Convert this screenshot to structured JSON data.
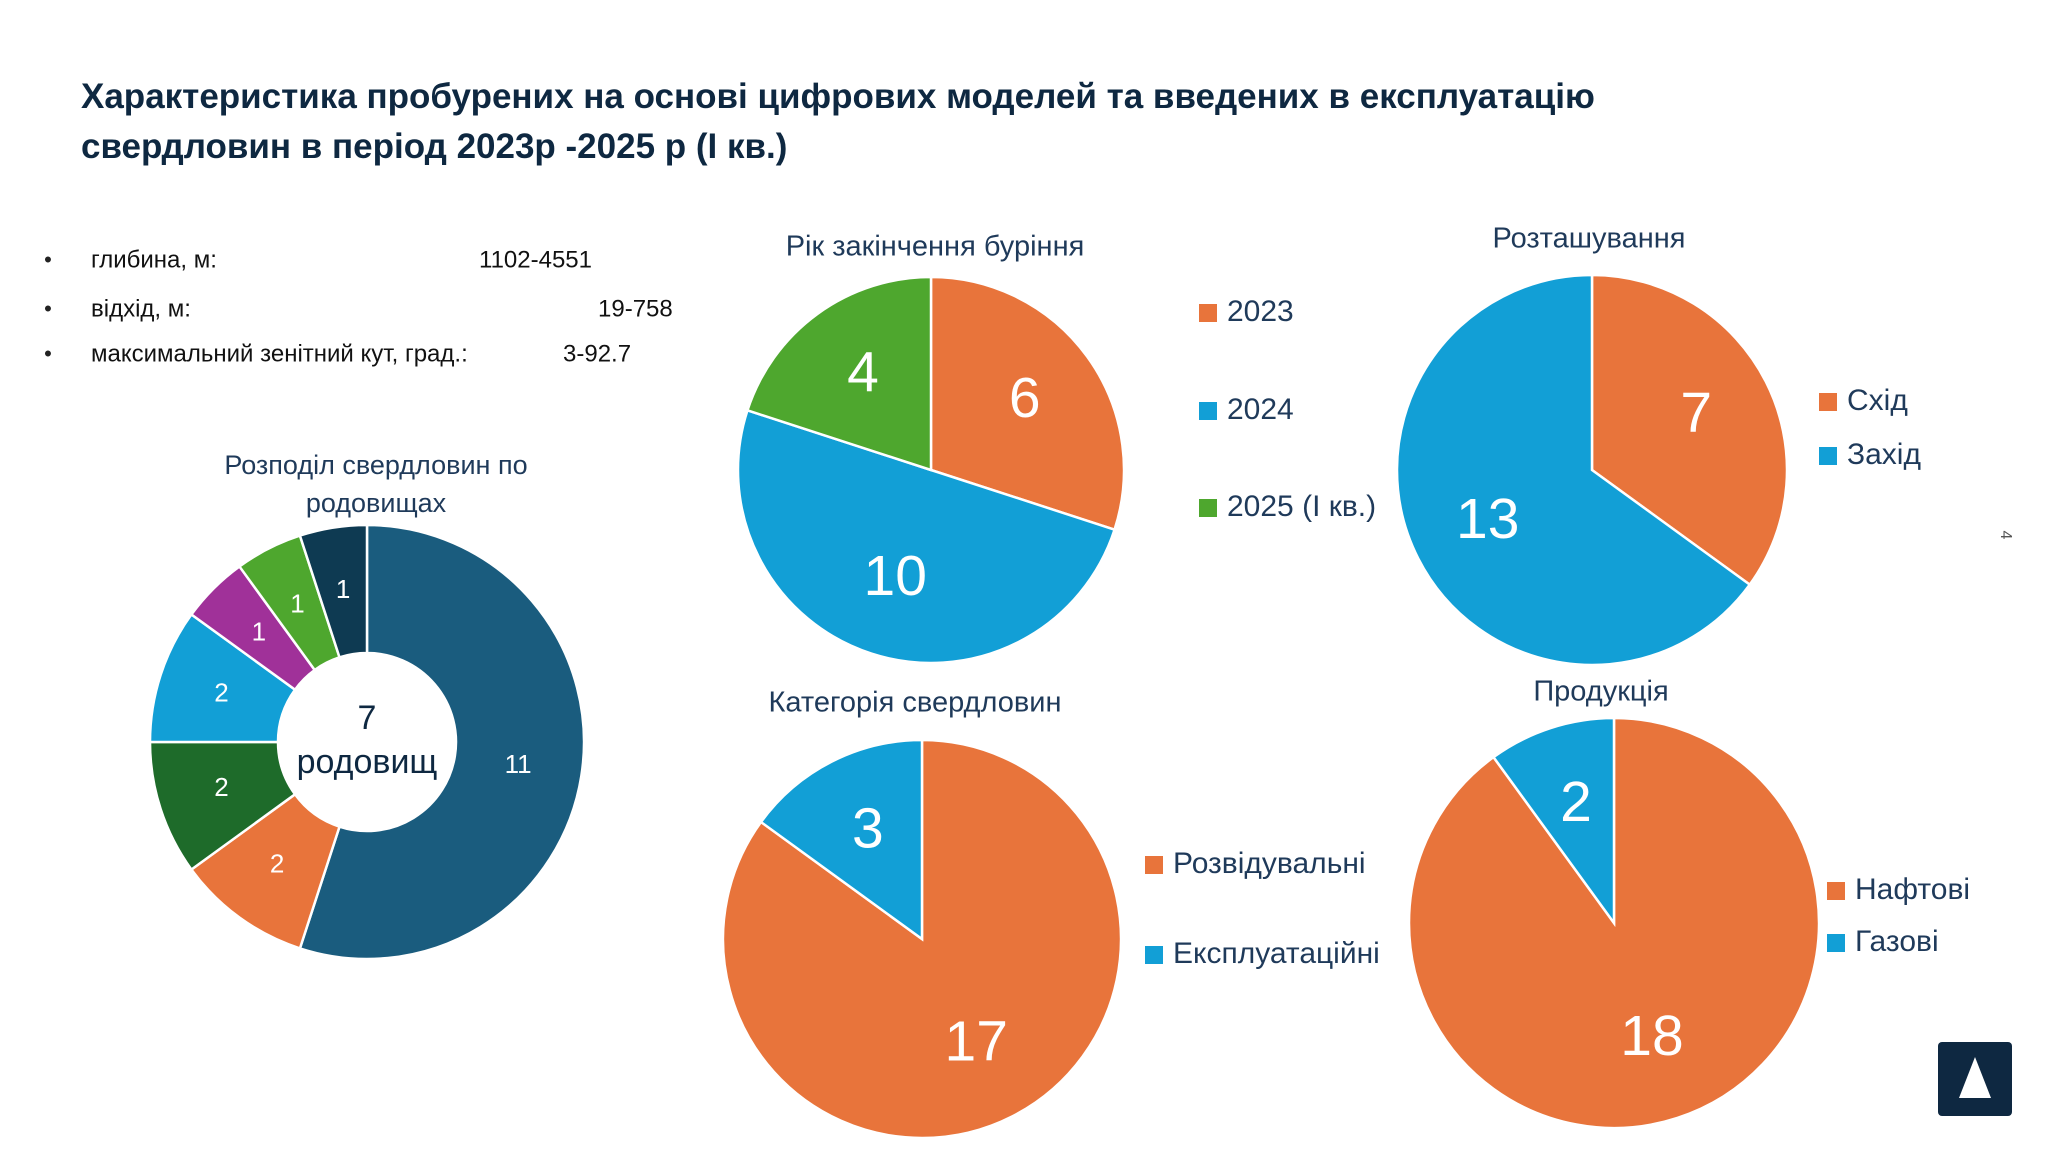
{
  "header": {
    "title": "Характеристика пробурених на основі цифрових моделей та введених в експлуатацію свердловин в період 2023р -2025 р (І кв.)"
  },
  "bullets": [
    {
      "label": "глибина, м:",
      "value": "1102-4551"
    },
    {
      "label": "відхід, м:",
      "value": "19-758"
    },
    {
      "label": "максимальний зенітний кут, град.:",
      "value": "3-92.7"
    }
  ],
  "page_number": "4",
  "chart_data": [
    {
      "type": "donut",
      "title": "Розподіл свердловин по родовищах",
      "values": [
        11,
        2,
        2,
        2,
        1,
        1,
        1
      ],
      "colors": [
        "#1a5c7e",
        "#e8743b",
        "#1e6b2a",
        "#129fd6",
        "#a03199",
        "#4ea72e",
        "#0e3a52"
      ],
      "center_label": [
        "7",
        "родовищ"
      ]
    },
    {
      "type": "pie",
      "title": "Рік закінчення буріння",
      "categories": [
        "2023",
        "2024",
        "2025 (І кв.)"
      ],
      "values": [
        6,
        10,
        4
      ],
      "colors": [
        "#e8743b",
        "#129fd6",
        "#4ea72e"
      ]
    },
    {
      "type": "pie",
      "title": "Розташування",
      "categories": [
        "Схід",
        "Захід"
      ],
      "values": [
        7,
        13
      ],
      "colors": [
        "#e8743b",
        "#129fd6"
      ]
    },
    {
      "type": "pie",
      "title": "Категорія свердловин",
      "categories": [
        "Розвідувальні",
        "Експлуатаційні"
      ],
      "values": [
        17,
        3
      ],
      "colors": [
        "#e8743b",
        "#129fd6"
      ]
    },
    {
      "type": "pie",
      "title": "Продукція",
      "categories": [
        "Нафтові",
        "Газові"
      ],
      "values": [
        18,
        2
      ],
      "colors": [
        "#e8743b",
        "#129fd6"
      ]
    }
  ]
}
